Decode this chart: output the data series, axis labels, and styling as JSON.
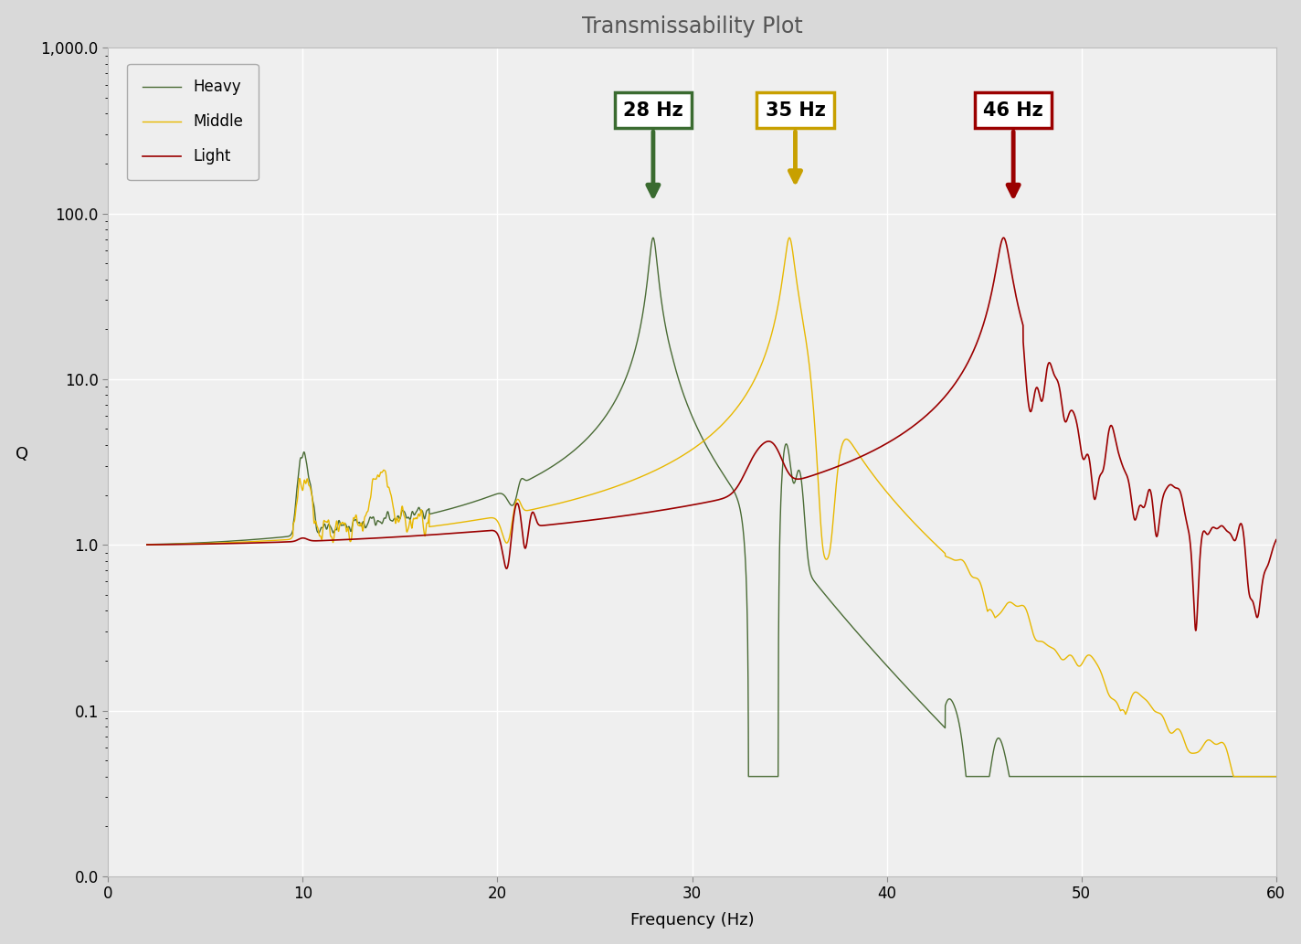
{
  "title": "Transmissability Plot",
  "xlabel": "Frequency (Hz)",
  "ylabel": "Q",
  "xlim": [
    0,
    60
  ],
  "yticks": [
    0.01,
    0.1,
    1.0,
    10.0,
    100.0,
    1000.0
  ],
  "ytick_labels": [
    "0.0",
    "0.1",
    "1.0",
    "10.0",
    "100.0",
    "1,000.0"
  ],
  "xticks": [
    0,
    10,
    20,
    30,
    40,
    50,
    60
  ],
  "fig_bg": "#d9d9d9",
  "plot_bg": "#efefef",
  "grid_color": "#ffffff",
  "heavy_color": "#4a6b35",
  "middle_color": "#e8b800",
  "light_color": "#9b0000",
  "ann_28_color": "#3a6b30",
  "ann_35_color": "#c8a000",
  "ann_46_color": "#9b0000",
  "title_fontsize": 17,
  "axis_fontsize": 13,
  "tick_fontsize": 12,
  "legend_fontsize": 12
}
